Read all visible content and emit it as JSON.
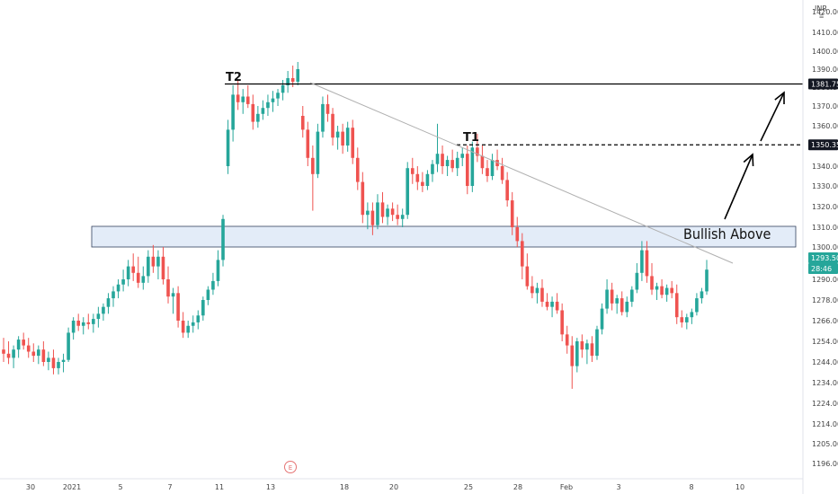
{
  "currency": "INR",
  "event_marker": "E",
  "colors": {
    "up": "#26a69a",
    "down": "#ef5350",
    "zone_fill": "#e3ecf8",
    "zone_stroke": "#33415c",
    "trendline": "#b0b0b0",
    "line": "#000000",
    "price_tag": "#26a69a",
    "event": "#e57373"
  },
  "chart_data": {
    "type": "candlestick",
    "y_ticks": [
      1196,
      1205,
      1214,
      1224,
      1234,
      1244,
      1254,
      1266,
      1278,
      1290,
      1300,
      1310,
      1320,
      1330,
      1340,
      1350,
      1360,
      1370,
      1380,
      1390,
      1400,
      1410,
      1420
    ],
    "y_tick_labels": [
      "1196.00",
      "1205.00",
      "1214.00",
      "1224.00",
      "1234.00",
      "1244.00",
      "1254.00",
      "1266.00",
      "1278.00",
      "1290.00",
      "1300.00",
      "1310.00",
      "1320.00",
      "1330.00",
      "1340.00",
      "1350.00",
      "1360.00",
      "1370.00",
      "1380.00",
      "1390.00",
      "1400.00",
      "1410.00",
      "1420.00"
    ],
    "x_ticks": [
      "30",
      "2021",
      "5",
      "7",
      "11",
      "13",
      "18",
      "20",
      "25",
      "28",
      "Feb",
      "3",
      "8",
      "10"
    ],
    "annotations": {
      "t2_label": "T2",
      "t1_label": "T1",
      "bullish_label": "Bullish Above",
      "resistance_zone": {
        "low": 1300,
        "high": 1310
      },
      "t2_level": 1381.75,
      "t1_level": 1350.35
    },
    "price_tags": [
      {
        "label": "1381.75",
        "style": "dark"
      },
      {
        "label": "1350.35",
        "style": "dark"
      },
      {
        "label": "1293.50",
        "style": "green"
      },
      {
        "label": "28:46",
        "style": "green"
      }
    ],
    "candles": [
      [
        1250,
        1256,
        1244,
        1248
      ],
      [
        1248,
        1254,
        1243,
        1246
      ],
      [
        1246,
        1252,
        1241,
        1250
      ],
      [
        1250,
        1257,
        1246,
        1255
      ],
      [
        1255,
        1259,
        1250,
        1252
      ],
      [
        1252,
        1256,
        1246,
        1249
      ],
      [
        1249,
        1253,
        1244,
        1247
      ],
      [
        1247,
        1252,
        1243,
        1250
      ],
      [
        1250,
        1254,
        1242,
        1244
      ],
      [
        1244,
        1249,
        1240,
        1246
      ],
      [
        1246,
        1250,
        1238,
        1241
      ],
      [
        1241,
        1246,
        1238,
        1244
      ],
      [
        1244,
        1248,
        1239,
        1245
      ],
      [
        1245,
        1262,
        1244,
        1259
      ],
      [
        1259,
        1268,
        1255,
        1266
      ],
      [
        1266,
        1270,
        1260,
        1263
      ],
      [
        1263,
        1268,
        1258,
        1265
      ],
      [
        1265,
        1270,
        1261,
        1264
      ],
      [
        1264,
        1270,
        1259,
        1267
      ],
      [
        1267,
        1274,
        1262,
        1270
      ],
      [
        1270,
        1276,
        1266,
        1274
      ],
      [
        1274,
        1282,
        1270,
        1279
      ],
      [
        1279,
        1286,
        1274,
        1283
      ],
      [
        1283,
        1290,
        1279,
        1287
      ],
      [
        1287,
        1293,
        1283,
        1290
      ],
      [
        1290,
        1296,
        1286,
        1294
      ],
      [
        1294,
        1298,
        1289,
        1292
      ],
      [
        1292,
        1297,
        1285,
        1288
      ],
      [
        1288,
        1294,
        1284,
        1291
      ],
      [
        1291,
        1299,
        1288,
        1297
      ],
      [
        1297,
        1301,
        1292,
        1294
      ],
      [
        1294,
        1299,
        1290,
        1297
      ],
      [
        1297,
        1300,
        1287,
        1290
      ],
      [
        1290,
        1294,
        1276,
        1280
      ],
      [
        1280,
        1285,
        1270,
        1282
      ],
      [
        1282,
        1286,
        1262,
        1266
      ],
      [
        1266,
        1271,
        1256,
        1259
      ],
      [
        1259,
        1266,
        1256,
        1263
      ],
      [
        1263,
        1269,
        1259,
        1265
      ],
      [
        1265,
        1272,
        1261,
        1269
      ],
      [
        1269,
        1280,
        1266,
        1278
      ],
      [
        1278,
        1286,
        1275,
        1284
      ],
      [
        1284,
        1292,
        1281,
        1289
      ],
      [
        1289,
        1299,
        1286,
        1296
      ],
      [
        1296,
        1316,
        1294,
        1314
      ],
      [
        1340,
        1363,
        1336,
        1358
      ],
      [
        1358,
        1381,
        1352,
        1376
      ],
      [
        1376,
        1384,
        1368,
        1372
      ],
      [
        1372,
        1379,
        1366,
        1375
      ],
      [
        1375,
        1381,
        1369,
        1371
      ],
      [
        1371,
        1376,
        1358,
        1362
      ],
      [
        1362,
        1370,
        1359,
        1366
      ],
      [
        1366,
        1373,
        1363,
        1369
      ],
      [
        1369,
        1376,
        1365,
        1372
      ],
      [
        1372,
        1378,
        1367,
        1374
      ],
      [
        1374,
        1379,
        1370,
        1377
      ],
      [
        1377,
        1384,
        1373,
        1381
      ],
      [
        1381,
        1389,
        1377,
        1385
      ],
      [
        1385,
        1392,
        1380,
        1383
      ],
      [
        1383,
        1394,
        1381,
        1390
      ],
      [
        1365,
        1370,
        1354,
        1358
      ],
      [
        1358,
        1362,
        1340,
        1344
      ],
      [
        1344,
        1350,
        1318,
        1336
      ],
      [
        1336,
        1361,
        1334,
        1357
      ],
      [
        1357,
        1375,
        1354,
        1371
      ],
      [
        1371,
        1376,
        1362,
        1366
      ],
      [
        1366,
        1369,
        1350,
        1354
      ],
      [
        1354,
        1360,
        1348,
        1357
      ],
      [
        1357,
        1361,
        1346,
        1350
      ],
      [
        1350,
        1362,
        1347,
        1359
      ],
      [
        1359,
        1363,
        1341,
        1344
      ],
      [
        1344,
        1349,
        1328,
        1332
      ],
      [
        1332,
        1337,
        1312,
        1316
      ],
      [
        1316,
        1322,
        1309,
        1318
      ],
      [
        1318,
        1322,
        1306,
        1311
      ],
      [
        1311,
        1326,
        1309,
        1322
      ],
      [
        1322,
        1327,
        1312,
        1315
      ],
      [
        1315,
        1321,
        1311,
        1319
      ],
      [
        1319,
        1322,
        1313,
        1316
      ],
      [
        1316,
        1321,
        1311,
        1314
      ],
      [
        1314,
        1319,
        1310,
        1316
      ],
      [
        1316,
        1342,
        1314,
        1339
      ],
      [
        1339,
        1344,
        1331,
        1336
      ],
      [
        1336,
        1340,
        1328,
        1332
      ],
      [
        1332,
        1337,
        1327,
        1330
      ],
      [
        1330,
        1338,
        1328,
        1336
      ],
      [
        1336,
        1343,
        1332,
        1341
      ],
      [
        1341,
        1361,
        1337,
        1346
      ],
      [
        1346,
        1350,
        1336,
        1340
      ],
      [
        1340,
        1345,
        1335,
        1343
      ],
      [
        1343,
        1348,
        1337,
        1339
      ],
      [
        1339,
        1347,
        1335,
        1344
      ],
      [
        1344,
        1349,
        1340,
        1346
      ],
      [
        1346,
        1350,
        1326,
        1330
      ],
      [
        1330,
        1352,
        1327,
        1349
      ],
      [
        1349,
        1356,
        1342,
        1345
      ],
      [
        1345,
        1350,
        1336,
        1339
      ],
      [
        1339,
        1343,
        1332,
        1335
      ],
      [
        1335,
        1346,
        1333,
        1343
      ],
      [
        1343,
        1348,
        1338,
        1340
      ],
      [
        1340,
        1344,
        1331,
        1333
      ],
      [
        1333,
        1337,
        1320,
        1323
      ],
      [
        1323,
        1327,
        1306,
        1310
      ],
      [
        1310,
        1315,
        1300,
        1303
      ],
      [
        1303,
        1307,
        1290,
        1294
      ],
      [
        1294,
        1298,
        1284,
        1286
      ],
      [
        1286,
        1291,
        1279,
        1282
      ],
      [
        1282,
        1288,
        1276,
        1285
      ],
      [
        1285,
        1290,
        1274,
        1277
      ],
      [
        1277,
        1282,
        1272,
        1274
      ],
      [
        1274,
        1280,
        1268,
        1277
      ],
      [
        1277,
        1282,
        1270,
        1272
      ],
      [
        1272,
        1276,
        1254,
        1258
      ],
      [
        1258,
        1263,
        1248,
        1252
      ],
      [
        1252,
        1257,
        1231,
        1242
      ],
      [
        1242,
        1256,
        1239,
        1254
      ],
      [
        1254,
        1258,
        1246,
        1250
      ],
      [
        1250,
        1255,
        1243,
        1253
      ],
      [
        1253,
        1257,
        1244,
        1247
      ],
      [
        1247,
        1263,
        1245,
        1261
      ],
      [
        1261,
        1276,
        1258,
        1273
      ],
      [
        1273,
        1290,
        1270,
        1284
      ],
      [
        1284,
        1288,
        1272,
        1276
      ],
      [
        1276,
        1281,
        1270,
        1279
      ],
      [
        1279,
        1283,
        1269,
        1271
      ],
      [
        1271,
        1280,
        1268,
        1277
      ],
      [
        1277,
        1286,
        1274,
        1284
      ],
      [
        1284,
        1295,
        1282,
        1292
      ],
      [
        1292,
        1303,
        1289,
        1299
      ],
      [
        1299,
        1303,
        1288,
        1291
      ],
      [
        1291,
        1295,
        1281,
        1284
      ],
      [
        1284,
        1288,
        1278,
        1286
      ],
      [
        1286,
        1290,
        1279,
        1281
      ],
      [
        1281,
        1287,
        1277,
        1285
      ],
      [
        1285,
        1289,
        1279,
        1282
      ],
      [
        1282,
        1287,
        1264,
        1268
      ],
      [
        1268,
        1272,
        1262,
        1265
      ],
      [
        1265,
        1270,
        1261,
        1268
      ],
      [
        1268,
        1273,
        1264,
        1271
      ],
      [
        1271,
        1282,
        1269,
        1279
      ],
      [
        1279,
        1285,
        1276,
        1283
      ],
      [
        1283,
        1296,
        1281,
        1293
      ]
    ]
  }
}
